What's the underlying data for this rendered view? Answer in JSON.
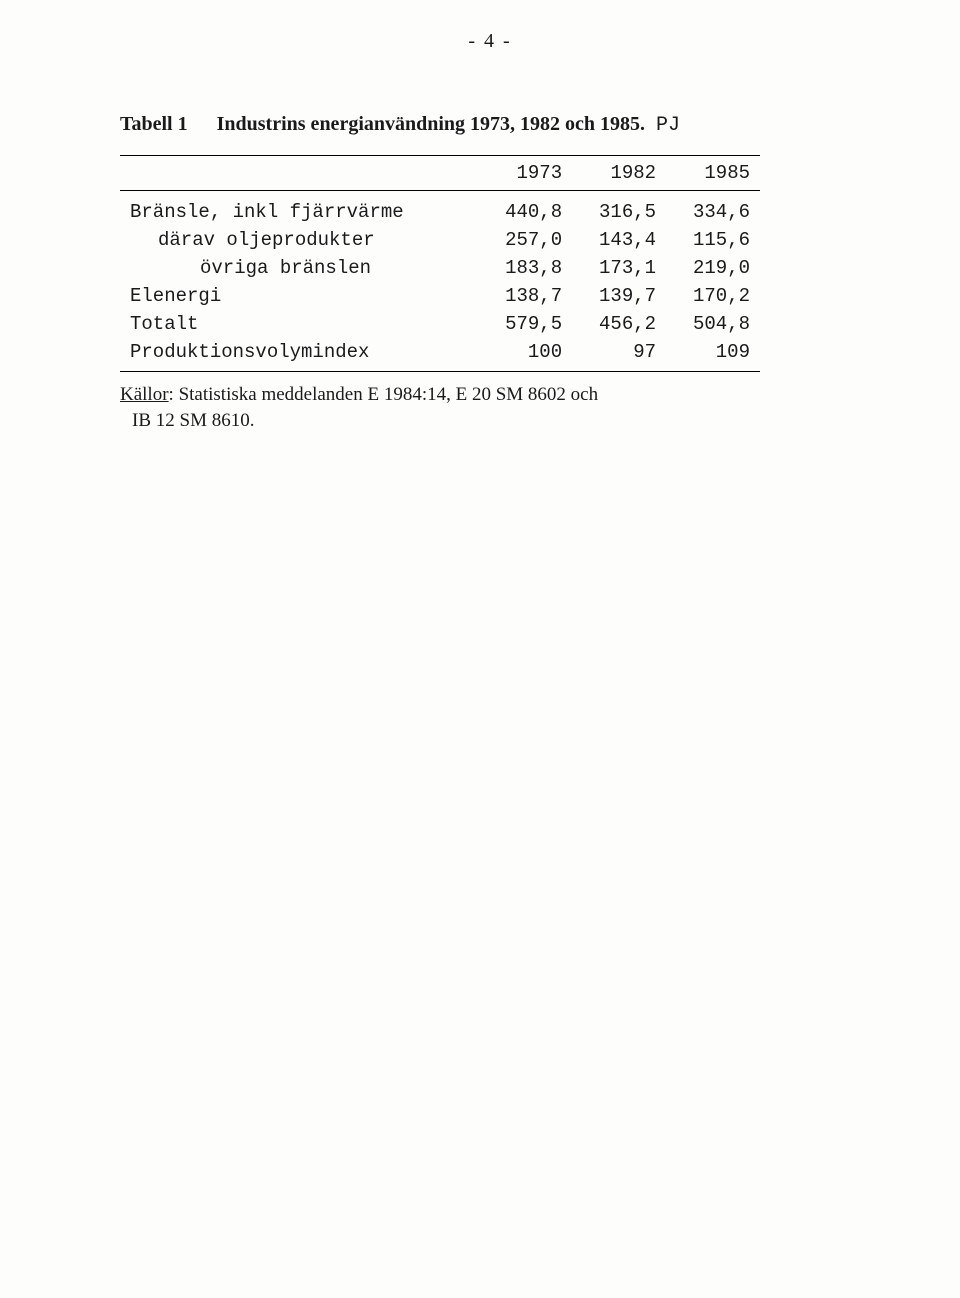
{
  "page_number_display": "- 4 -",
  "table": {
    "type": "table",
    "title_label": "Tabell 1",
    "title_text": "Industrins energianvändning 1973, 1982 och 1985.",
    "title_suffix": "PJ",
    "columns": [
      "",
      "1973",
      "1982",
      "1985"
    ],
    "rows": [
      {
        "label": "Bränsle, inkl fjärrvärme",
        "indent": 0,
        "v": [
          "440,8",
          "316,5",
          "334,6"
        ]
      },
      {
        "label": "därav oljeprodukter",
        "indent": 1,
        "v": [
          "257,0",
          "143,4",
          "115,6"
        ]
      },
      {
        "label": "övriga bränslen",
        "indent": 2,
        "v": [
          "183,8",
          "173,1",
          "219,0"
        ]
      },
      {
        "label": "Elenergi",
        "indent": 0,
        "v": [
          "138,7",
          "139,7",
          "170,2"
        ]
      },
      {
        "label": "Totalt",
        "indent": 0,
        "v": [
          "579,5",
          "456,2",
          "504,8"
        ]
      },
      {
        "label": "Produktionsvolymindex",
        "indent": 0,
        "v": [
          "100",
          "97",
          "109"
        ]
      }
    ],
    "column_align": [
      "left",
      "right",
      "right",
      "right"
    ],
    "border_color": "#000000",
    "text_color": "#1a1a1a",
    "background_color": "#fdfdfb",
    "header_fontsize_pt": 14,
    "body_fontsize_pt": 14,
    "font_family_body": "Courier New",
    "font_family_heading": "Times New Roman"
  },
  "source": {
    "label": "Källor",
    "text_line1": ": Statistiska meddelanden E 1984:14, E 20 SM 8602 och",
    "text_line2": "IB 12 SM 8610."
  }
}
